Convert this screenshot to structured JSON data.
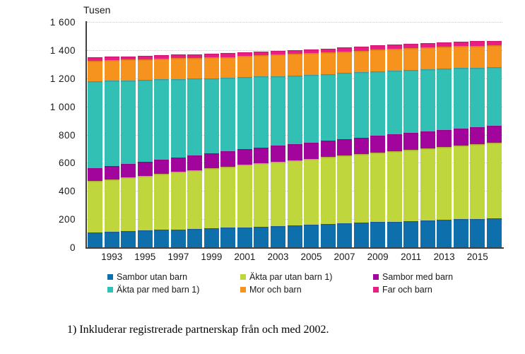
{
  "chart": {
    "value_axis_title": "Tusen",
    "y_tick_labels": [
      "0",
      "200",
      "400",
      "600",
      "800",
      "1 000",
      "1 200",
      "1 400",
      "1 600"
    ],
    "x_tick_labels": [
      "1993",
      "1995",
      "1997",
      "1999",
      "2001",
      "2003",
      "2005",
      "2007",
      "2009",
      "2011",
      "2013",
      "2015"
    ],
    "footnote": "1) Inkluderar registrerade partnerskap från och med 2002."
  },
  "chart_data": {
    "type": "bar",
    "stacked": true,
    "title": "",
    "ylabel": "Tusen",
    "xlabel": "",
    "ylim": [
      0,
      1600
    ],
    "ytick_step": 200,
    "grid": "horizontal-dotted",
    "legend_position": "bottom",
    "categories": [
      1992,
      1993,
      1994,
      1995,
      1996,
      1997,
      1998,
      1999,
      2000,
      2001,
      2002,
      2003,
      2004,
      2005,
      2006,
      2007,
      2008,
      2009,
      2010,
      2011,
      2012,
      2013,
      2014,
      2015,
      2016
    ],
    "series": [
      {
        "name": "Sambor utan barn",
        "color": "#0e6fad",
        "values": [
          112,
          116,
          120,
          124,
          128,
          132,
          136,
          140,
          144,
          148,
          153,
          158,
          163,
          168,
          172,
          176,
          180,
          184,
          188,
          192,
          196,
          200,
          204,
          208,
          212
        ]
      },
      {
        "name": "Äkta par utan barn 1)",
        "color": "#bfd73d",
        "values": [
          363,
          372,
          381,
          390,
          399,
          408,
          417,
          426,
          434,
          442,
          448,
          454,
          460,
          466,
          473,
          480,
          487,
          494,
          500,
          506,
          512,
          518,
          524,
          530,
          535
        ]
      },
      {
        "name": "Sambor med barn",
        "color": "#a2059c",
        "values": [
          93,
          95,
          97,
          99,
          101,
          103,
          105,
          107,
          109,
          110,
          112,
          113,
          114,
          115,
          116,
          117,
          118,
          118,
          119,
          120,
          120,
          121,
          121,
          122,
          122
        ]
      },
      {
        "name": "Äkta par med barn 1)",
        "color": "#32bfb4",
        "values": [
          617,
          605,
          593,
          581,
          569,
          557,
          545,
          533,
          521,
          513,
          504,
          496,
          489,
          482,
          475,
          469,
          463,
          458,
          452,
          446,
          441,
          434,
          428,
          420,
          413
        ]
      },
      {
        "name": "Mor och barn",
        "color": "#f6921e",
        "values": [
          145,
          146,
          146,
          147,
          147,
          148,
          148,
          149,
          149,
          150,
          150,
          151,
          151,
          152,
          152,
          153,
          153,
          154,
          154,
          155,
          155,
          156,
          156,
          157,
          157
        ]
      },
      {
        "name": "Far och barn",
        "color": "#e81f82",
        "values": [
          24,
          24,
          25,
          25,
          25,
          26,
          26,
          26,
          27,
          27,
          27,
          28,
          28,
          28,
          29,
          29,
          29,
          30,
          30,
          30,
          31,
          31,
          31,
          32,
          32
        ]
      }
    ],
    "legend_rows": [
      [
        "Sambor utan barn",
        "Äkta par utan barn 1)",
        "Sambor med barn"
      ],
      [
        "Äkta par med barn 1)",
        "Mor och barn",
        "Far och barn"
      ]
    ]
  }
}
